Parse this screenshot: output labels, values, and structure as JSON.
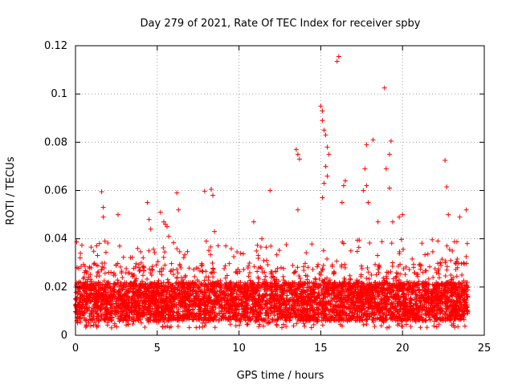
{
  "chart_data": {
    "type": "scatter",
    "title": "Day 279 of 2021, Rate Of TEC Index for receiver spby",
    "xlabel": "GPS time / hours",
    "ylabel": "ROTI / TECUs",
    "xlim": [
      0,
      25
    ],
    "ylim": [
      0,
      0.12
    ],
    "x_ticks": [
      0,
      5,
      10,
      15,
      20,
      25
    ],
    "x_tick_labels": [
      "0",
      "5",
      "10",
      "15",
      "20",
      "25"
    ],
    "y_ticks": [
      0,
      0.02,
      0.04,
      0.06,
      0.08,
      0.1,
      0.12
    ],
    "y_tick_labels": [
      "0",
      "0.02",
      "0.04",
      "0.06",
      "0.08",
      "0.1",
      "0.12"
    ],
    "grid": true,
    "marker": "+",
    "color": "#ff0000",
    "data_range_x": [
      0,
      24
    ],
    "baseline_band": {
      "low": 0.006,
      "high": 0.022
    },
    "outliers": [
      {
        "x": 0.3,
        "y": 0.034
      },
      {
        "x": 1.6,
        "y": 0.0595
      },
      {
        "x": 1.7,
        "y": 0.053
      },
      {
        "x": 1.7,
        "y": 0.049
      },
      {
        "x": 1.8,
        "y": 0.039
      },
      {
        "x": 2.6,
        "y": 0.05
      },
      {
        "x": 2.7,
        "y": 0.037
      },
      {
        "x": 3.8,
        "y": 0.036
      },
      {
        "x": 4.4,
        "y": 0.055
      },
      {
        "x": 4.5,
        "y": 0.048
      },
      {
        "x": 4.6,
        "y": 0.044
      },
      {
        "x": 5.2,
        "y": 0.051
      },
      {
        "x": 5.4,
        "y": 0.047
      },
      {
        "x": 5.5,
        "y": 0.046
      },
      {
        "x": 5.6,
        "y": 0.045
      },
      {
        "x": 5.7,
        "y": 0.041
      },
      {
        "x": 6.2,
        "y": 0.059
      },
      {
        "x": 6.3,
        "y": 0.052
      },
      {
        "x": 7.9,
        "y": 0.0597
      },
      {
        "x": 8.3,
        "y": 0.0605
      },
      {
        "x": 8.4,
        "y": 0.058
      },
      {
        "x": 8.5,
        "y": 0.043
      },
      {
        "x": 10.9,
        "y": 0.047
      },
      {
        "x": 11.4,
        "y": 0.04
      },
      {
        "x": 11.9,
        "y": 0.06
      },
      {
        "x": 13.5,
        "y": 0.077
      },
      {
        "x": 13.6,
        "y": 0.075
      },
      {
        "x": 13.7,
        "y": 0.073
      },
      {
        "x": 13.6,
        "y": 0.052
      },
      {
        "x": 15.0,
        "y": 0.095
      },
      {
        "x": 15.1,
        "y": 0.093
      },
      {
        "x": 15.1,
        "y": 0.089
      },
      {
        "x": 15.2,
        "y": 0.085
      },
      {
        "x": 15.3,
        "y": 0.083
      },
      {
        "x": 15.4,
        "y": 0.078
      },
      {
        "x": 15.3,
        "y": 0.07
      },
      {
        "x": 15.4,
        "y": 0.066
      },
      {
        "x": 15.2,
        "y": 0.063
      },
      {
        "x": 15.1,
        "y": 0.057
      },
      {
        "x": 15.5,
        "y": 0.075
      },
      {
        "x": 16.0,
        "y": 0.1135
      },
      {
        "x": 16.1,
        "y": 0.1155
      },
      {
        "x": 16.3,
        "y": 0.055
      },
      {
        "x": 16.4,
        "y": 0.062
      },
      {
        "x": 16.5,
        "y": 0.064
      },
      {
        "x": 16.4,
        "y": 0.038
      },
      {
        "x": 17.6,
        "y": 0.06
      },
      {
        "x": 17.8,
        "y": 0.079
      },
      {
        "x": 17.7,
        "y": 0.069
      },
      {
        "x": 17.8,
        "y": 0.062
      },
      {
        "x": 17.9,
        "y": 0.055
      },
      {
        "x": 18.2,
        "y": 0.081
      },
      {
        "x": 18.5,
        "y": 0.047
      },
      {
        "x": 18.9,
        "y": 0.1025
      },
      {
        "x": 19.0,
        "y": 0.069
      },
      {
        "x": 19.2,
        "y": 0.075
      },
      {
        "x": 19.3,
        "y": 0.0805
      },
      {
        "x": 19.2,
        "y": 0.061
      },
      {
        "x": 19.4,
        "y": 0.047
      },
      {
        "x": 19.8,
        "y": 0.049
      },
      {
        "x": 20.0,
        "y": 0.05
      },
      {
        "x": 22.6,
        "y": 0.0725
      },
      {
        "x": 22.7,
        "y": 0.0615
      },
      {
        "x": 22.8,
        "y": 0.05
      },
      {
        "x": 23.5,
        "y": 0.049
      },
      {
        "x": 23.9,
        "y": 0.052
      }
    ]
  }
}
